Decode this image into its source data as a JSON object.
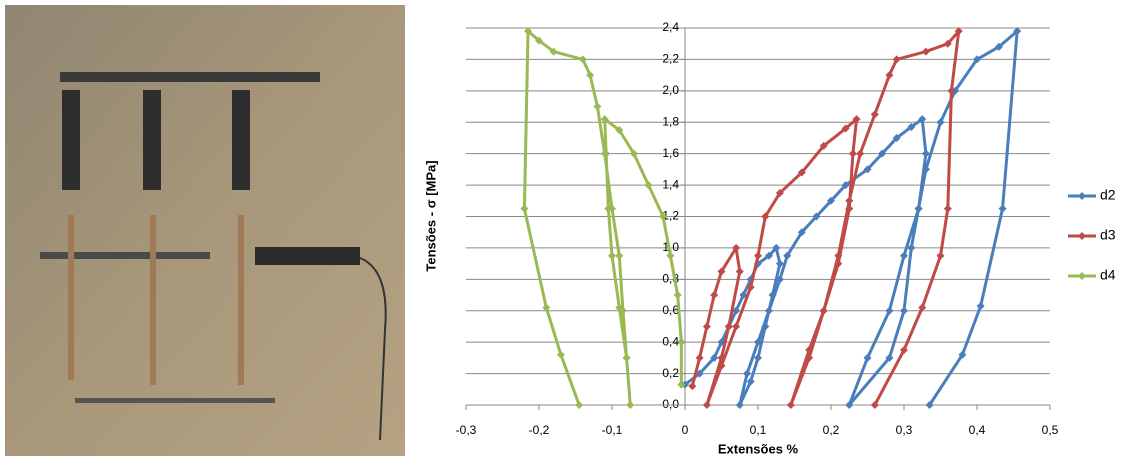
{
  "chart_data": {
    "type": "line",
    "y_label": "Tensões - σ [MPa]",
    "x_label": "Extensões %",
    "xlim": [
      -0.3,
      0.5
    ],
    "xticks": [
      {
        "value": -0.3,
        "label": "-0,3"
      },
      {
        "value": -0.2,
        "label": "-0,2"
      },
      {
        "value": -0.1,
        "label": "-0,1"
      },
      0,
      {
        "value": 0.1,
        "label": "0,1"
      },
      {
        "value": 0.2,
        "label": "0,2"
      },
      {
        "value": 0.3,
        "label": "0,3"
      },
      {
        "value": 0.4,
        "label": "0,4"
      },
      {
        "value": 0.5,
        "label": "0,5"
      }
    ],
    "ylim": [
      0,
      2.4
    ],
    "yticks": [
      {
        "value": 0,
        "label": "0,0"
      },
      {
        "value": 0.2,
        "label": "0,2"
      },
      {
        "value": 0.4,
        "label": "0,4"
      },
      {
        "value": 0.6,
        "label": "0,6"
      },
      {
        "value": 0.8,
        "label": "0,8"
      },
      {
        "value": 1.0,
        "label": "1,0"
      },
      {
        "value": 1.2,
        "label": "1,2"
      },
      {
        "value": 1.4,
        "label": "1,4"
      },
      {
        "value": 1.6,
        "label": "1,6"
      },
      {
        "value": 1.8,
        "label": "1,8"
      },
      {
        "value": 2.0,
        "label": "2,0"
      },
      {
        "value": 2.2,
        "label": "2,2"
      },
      {
        "value": 2.4,
        "label": "2,4"
      }
    ],
    "grid": true,
    "legend": "right",
    "series": [
      {
        "name": "d2",
        "color": "#4a7ebb",
        "x": [
          0.0,
          0.02,
          0.04,
          0.05,
          0.06,
          0.07,
          0.08,
          0.09,
          0.1,
          0.115,
          0.125,
          0.13,
          0.12,
          0.11,
          0.1,
          0.09,
          0.075,
          0.085,
          0.1,
          0.115,
          0.13,
          0.14,
          0.16,
          0.18,
          0.2,
          0.22,
          0.25,
          0.27,
          0.29,
          0.31,
          0.325,
          0.33,
          0.32,
          0.31,
          0.3,
          0.28,
          0.225,
          0.25,
          0.28,
          0.3,
          0.32,
          0.33,
          0.35,
          0.37,
          0.4,
          0.43,
          0.455,
          0.435,
          0.405,
          0.38,
          0.335
        ],
        "values": [
          0.13,
          0.2,
          0.3,
          0.4,
          0.5,
          0.6,
          0.7,
          0.8,
          0.9,
          0.95,
          1.0,
          0.9,
          0.7,
          0.5,
          0.3,
          0.15,
          0.0,
          0.2,
          0.4,
          0.6,
          0.8,
          0.95,
          1.1,
          1.2,
          1.3,
          1.4,
          1.5,
          1.6,
          1.7,
          1.77,
          1.82,
          1.6,
          1.25,
          1.0,
          0.6,
          0.3,
          0.0,
          0.3,
          0.6,
          0.95,
          1.25,
          1.5,
          1.8,
          2.0,
          2.2,
          2.28,
          2.38,
          1.25,
          0.63,
          0.32,
          0.0
        ]
      },
      {
        "name": "d3",
        "color": "#be4b48",
        "x": [
          0.01,
          0.02,
          0.03,
          0.04,
          0.05,
          0.07,
          0.075,
          0.06,
          0.05,
          0.03,
          0.05,
          0.07,
          0.09,
          0.1,
          0.11,
          0.13,
          0.16,
          0.19,
          0.22,
          0.235,
          0.23,
          0.225,
          0.21,
          0.19,
          0.17,
          0.145,
          0.17,
          0.19,
          0.21,
          0.225,
          0.24,
          0.26,
          0.28,
          0.29,
          0.33,
          0.36,
          0.375,
          0.365,
          0.36,
          0.35,
          0.325,
          0.3,
          0.26
        ],
        "values": [
          0.12,
          0.3,
          0.5,
          0.7,
          0.85,
          1.0,
          0.85,
          0.5,
          0.3,
          0.0,
          0.25,
          0.5,
          0.75,
          0.95,
          1.2,
          1.35,
          1.48,
          1.65,
          1.76,
          1.82,
          1.6,
          1.25,
          0.9,
          0.6,
          0.3,
          0.0,
          0.35,
          0.6,
          0.95,
          1.3,
          1.6,
          1.85,
          2.1,
          2.2,
          2.25,
          2.3,
          2.38,
          2.0,
          1.25,
          0.95,
          0.62,
          0.35,
          0.0
        ]
      },
      {
        "name": "d4",
        "color": "#98b954",
        "x": [
          -0.005,
          -0.005,
          -0.01,
          -0.02,
          -0.03,
          -0.05,
          -0.07,
          -0.09,
          -0.11,
          -0.108,
          -0.105,
          -0.1,
          -0.09,
          -0.08,
          -0.075,
          -0.08,
          -0.085,
          -0.09,
          -0.1,
          -0.11,
          -0.12,
          -0.13,
          -0.14,
          -0.18,
          -0.2,
          -0.215,
          -0.22,
          -0.19,
          -0.17,
          -0.145
        ],
        "values": [
          0.13,
          0.4,
          0.7,
          0.95,
          1.2,
          1.4,
          1.6,
          1.75,
          1.82,
          1.6,
          1.25,
          0.95,
          0.62,
          0.3,
          0.0,
          0.3,
          0.6,
          0.95,
          1.25,
          1.6,
          1.9,
          2.1,
          2.2,
          2.25,
          2.32,
          2.38,
          1.25,
          0.62,
          0.32,
          0.0
        ]
      }
    ]
  }
}
